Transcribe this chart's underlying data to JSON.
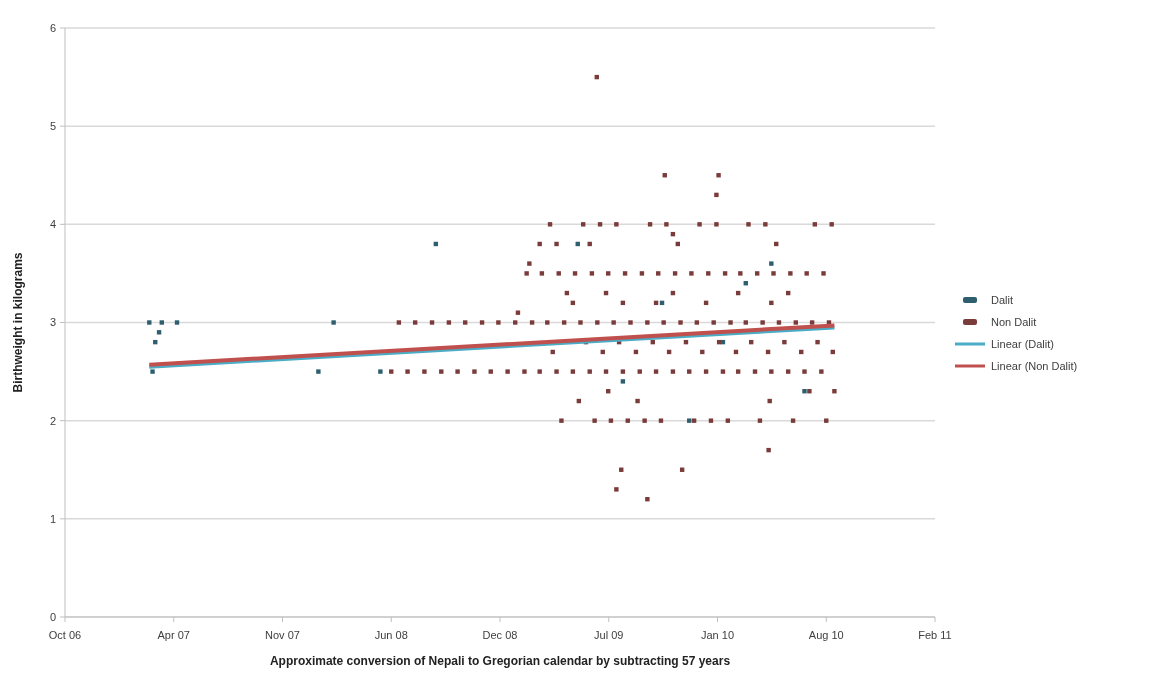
{
  "chart_data": {
    "type": "scatter",
    "xlabel": "Approximate conversion of Nepali to Gregorian calendar by subtracting 57 years",
    "ylabel": "Birthweight in kilograms",
    "xlim": [
      "2006-10-10",
      "2011-02-26"
    ],
    "xticks": [
      {
        "value": "2006-10-10",
        "label": "Oct 06"
      },
      {
        "value": "2007-04-28",
        "label": "Apr 07"
      },
      {
        "value": "2007-11-14",
        "label": "Nov 07"
      },
      {
        "value": "2008-06-01",
        "label": "Jun 08"
      },
      {
        "value": "2008-12-18",
        "label": "Dec 08"
      },
      {
        "value": "2009-07-06",
        "label": "Jul 09"
      },
      {
        "value": "2010-01-22",
        "label": "Jan 10"
      },
      {
        "value": "2010-08-10",
        "label": "Aug 10"
      },
      {
        "value": "2011-02-26",
        "label": "Feb 11"
      }
    ],
    "ylim": [
      0,
      6
    ],
    "yticks": [
      0,
      1,
      2,
      3,
      4,
      5,
      6
    ],
    "grid": "y",
    "legend": "right",
    "marker": "square",
    "series": [
      {
        "name": "Dalit",
        "color": "#2e5f6e",
        "x": [
          "2007-03-14",
          "2007-04-06",
          "2007-05-04",
          "2007-04-01",
          "2007-03-25",
          "2007-03-20",
          "2008-02-16",
          "2008-01-19",
          "2008-05-12",
          "2008-08-22",
          "2009-05-10",
          "2009-08-01",
          "2009-10-12",
          "2010-02-01",
          "2010-05-01",
          "2010-07-01",
          "2009-12-01",
          "2010-03-15"
        ],
        "values": [
          3.0,
          3.0,
          3.0,
          2.9,
          2.8,
          2.5,
          3.0,
          2.5,
          2.5,
          3.8,
          3.8,
          2.4,
          3.2,
          2.8,
          3.6,
          2.3,
          2.0,
          3.4
        ]
      },
      {
        "name": "Non Dalit",
        "color": "#7a3b3b",
        "x": [
          "2008-06-15",
          "2008-07-15",
          "2008-08-15",
          "2008-09-15",
          "2008-10-15",
          "2008-11-15",
          "2008-12-15",
          "2009-01-15",
          "2009-02-15",
          "2009-03-15",
          "2009-04-15",
          "2009-05-15",
          "2009-06-15",
          "2009-07-15",
          "2009-08-15",
          "2009-09-15",
          "2009-10-15",
          "2009-11-15",
          "2009-12-15",
          "2010-01-15",
          "2010-02-15",
          "2010-03-15",
          "2010-04-15",
          "2010-05-15",
          "2010-06-15",
          "2010-07-15",
          "2010-08-15",
          "2008-06-01",
          "2008-07-01",
          "2008-08-01",
          "2008-09-01",
          "2008-10-01",
          "2008-11-01",
          "2008-12-01",
          "2009-01-01",
          "2009-02-01",
          "2009-03-01",
          "2009-04-01",
          "2009-05-01",
          "2009-06-01",
          "2009-07-01",
          "2009-08-01",
          "2009-09-01",
          "2009-10-01",
          "2009-11-01",
          "2009-12-01",
          "2010-01-01",
          "2010-02-01",
          "2010-03-01",
          "2010-04-01",
          "2010-05-01",
          "2010-06-01",
          "2010-07-01",
          "2010-08-01",
          "2009-02-05",
          "2009-03-05",
          "2009-04-05",
          "2009-05-05",
          "2009-06-05",
          "2009-07-05",
          "2009-08-05",
          "2009-09-05",
          "2009-10-05",
          "2009-11-05",
          "2009-12-05",
          "2010-01-05",
          "2010-02-05",
          "2010-03-05",
          "2010-04-05",
          "2010-05-05",
          "2010-06-05",
          "2010-07-05",
          "2010-08-05",
          "2009-03-20",
          "2009-05-20",
          "2009-06-20",
          "2009-07-20",
          "2009-09-20",
          "2009-10-20",
          "2009-12-20",
          "2010-01-20",
          "2010-03-20",
          "2010-04-20",
          "2010-07-20",
          "2010-08-20",
          "2009-04-10",
          "2009-06-10",
          "2009-07-10",
          "2009-08-10",
          "2009-09-10",
          "2009-10-10",
          "2009-12-10",
          "2010-01-10",
          "2010-02-10",
          "2010-04-10",
          "2010-06-10",
          "2010-08-10",
          "2009-05-25",
          "2009-07-25",
          "2009-09-25",
          "2009-11-25",
          "2010-01-25",
          "2010-03-25",
          "2010-05-25",
          "2010-07-25",
          "2009-03-25",
          "2009-06-25",
          "2009-08-25",
          "2009-10-25",
          "2009-12-25",
          "2010-02-25",
          "2010-04-25",
          "2010-06-25",
          "2010-08-22",
          "2009-05-01",
          "2009-08-01",
          "2009-10-01",
          "2010-01-01",
          "2010-05-01",
          "2009-04-20",
          "2009-07-01",
          "2009-11-01",
          "2010-03-01",
          "2010-06-01",
          "2009-03-01",
          "2009-04-01",
          "2009-06-01",
          "2009-11-10",
          "2010-05-10",
          "2009-05-12",
          "2009-07-05",
          "2009-08-28",
          "2010-04-28",
          "2010-07-10",
          "2010-08-25",
          "2009-06-14",
          "2009-10-17",
          "2010-01-24",
          "2010-01-20",
          "2009-07-29",
          "2009-07-20",
          "2009-09-15",
          "2009-11-18",
          "2010-04-26",
          "2009-02-10",
          "2009-01-20",
          "2009-11-01"
        ],
        "values": [
          3.0,
          3.0,
          3.0,
          3.0,
          3.0,
          3.0,
          3.0,
          3.0,
          3.0,
          3.0,
          3.0,
          3.0,
          3.0,
          3.0,
          3.0,
          3.0,
          3.0,
          3.0,
          3.0,
          3.0,
          3.0,
          3.0,
          3.0,
          3.0,
          3.0,
          3.0,
          3.0,
          2.5,
          2.5,
          2.5,
          2.5,
          2.5,
          2.5,
          2.5,
          2.5,
          2.5,
          2.5,
          2.5,
          2.5,
          2.5,
          2.5,
          2.5,
          2.5,
          2.5,
          2.5,
          2.5,
          2.5,
          2.5,
          2.5,
          2.5,
          2.5,
          2.5,
          2.5,
          2.5,
          3.5,
          3.5,
          3.5,
          3.5,
          3.5,
          3.5,
          3.5,
          3.5,
          3.5,
          3.5,
          3.5,
          3.5,
          3.5,
          3.5,
          3.5,
          3.5,
          3.5,
          3.5,
          3.5,
          4.0,
          4.0,
          4.0,
          4.0,
          4.0,
          4.0,
          4.0,
          4.0,
          4.0,
          4.0,
          4.0,
          4.0,
          2.0,
          2.0,
          2.0,
          2.0,
          2.0,
          2.0,
          2.0,
          2.0,
          2.0,
          2.0,
          2.0,
          2.0,
          2.8,
          2.8,
          2.8,
          2.8,
          2.8,
          2.8,
          2.8,
          2.8,
          2.7,
          2.7,
          2.7,
          2.7,
          2.7,
          2.7,
          2.7,
          2.7,
          2.7,
          3.2,
          3.2,
          3.2,
          3.2,
          3.2,
          3.3,
          3.3,
          3.3,
          3.3,
          3.3,
          3.8,
          3.8,
          3.8,
          3.8,
          3.8,
          2.2,
          2.3,
          2.2,
          2.2,
          2.3,
          2.3,
          5.5,
          4.5,
          4.5,
          4.3,
          1.5,
          1.3,
          1.2,
          1.5,
          1.7,
          3.6,
          3.1,
          3.9
        ]
      },
      {
        "name": "Linear (Dalit)",
        "type": "line",
        "marker": "none",
        "color": "#4bacc6",
        "x": [
          "2007-03-14",
          "2010-08-25"
        ],
        "values": [
          2.55,
          2.95
        ]
      },
      {
        "name": "Linear (Non Dalit)",
        "type": "line",
        "marker": "none",
        "color": "#c0504d",
        "x": [
          "2007-03-14",
          "2010-08-25"
        ],
        "values": [
          2.57,
          2.97
        ]
      }
    ]
  }
}
